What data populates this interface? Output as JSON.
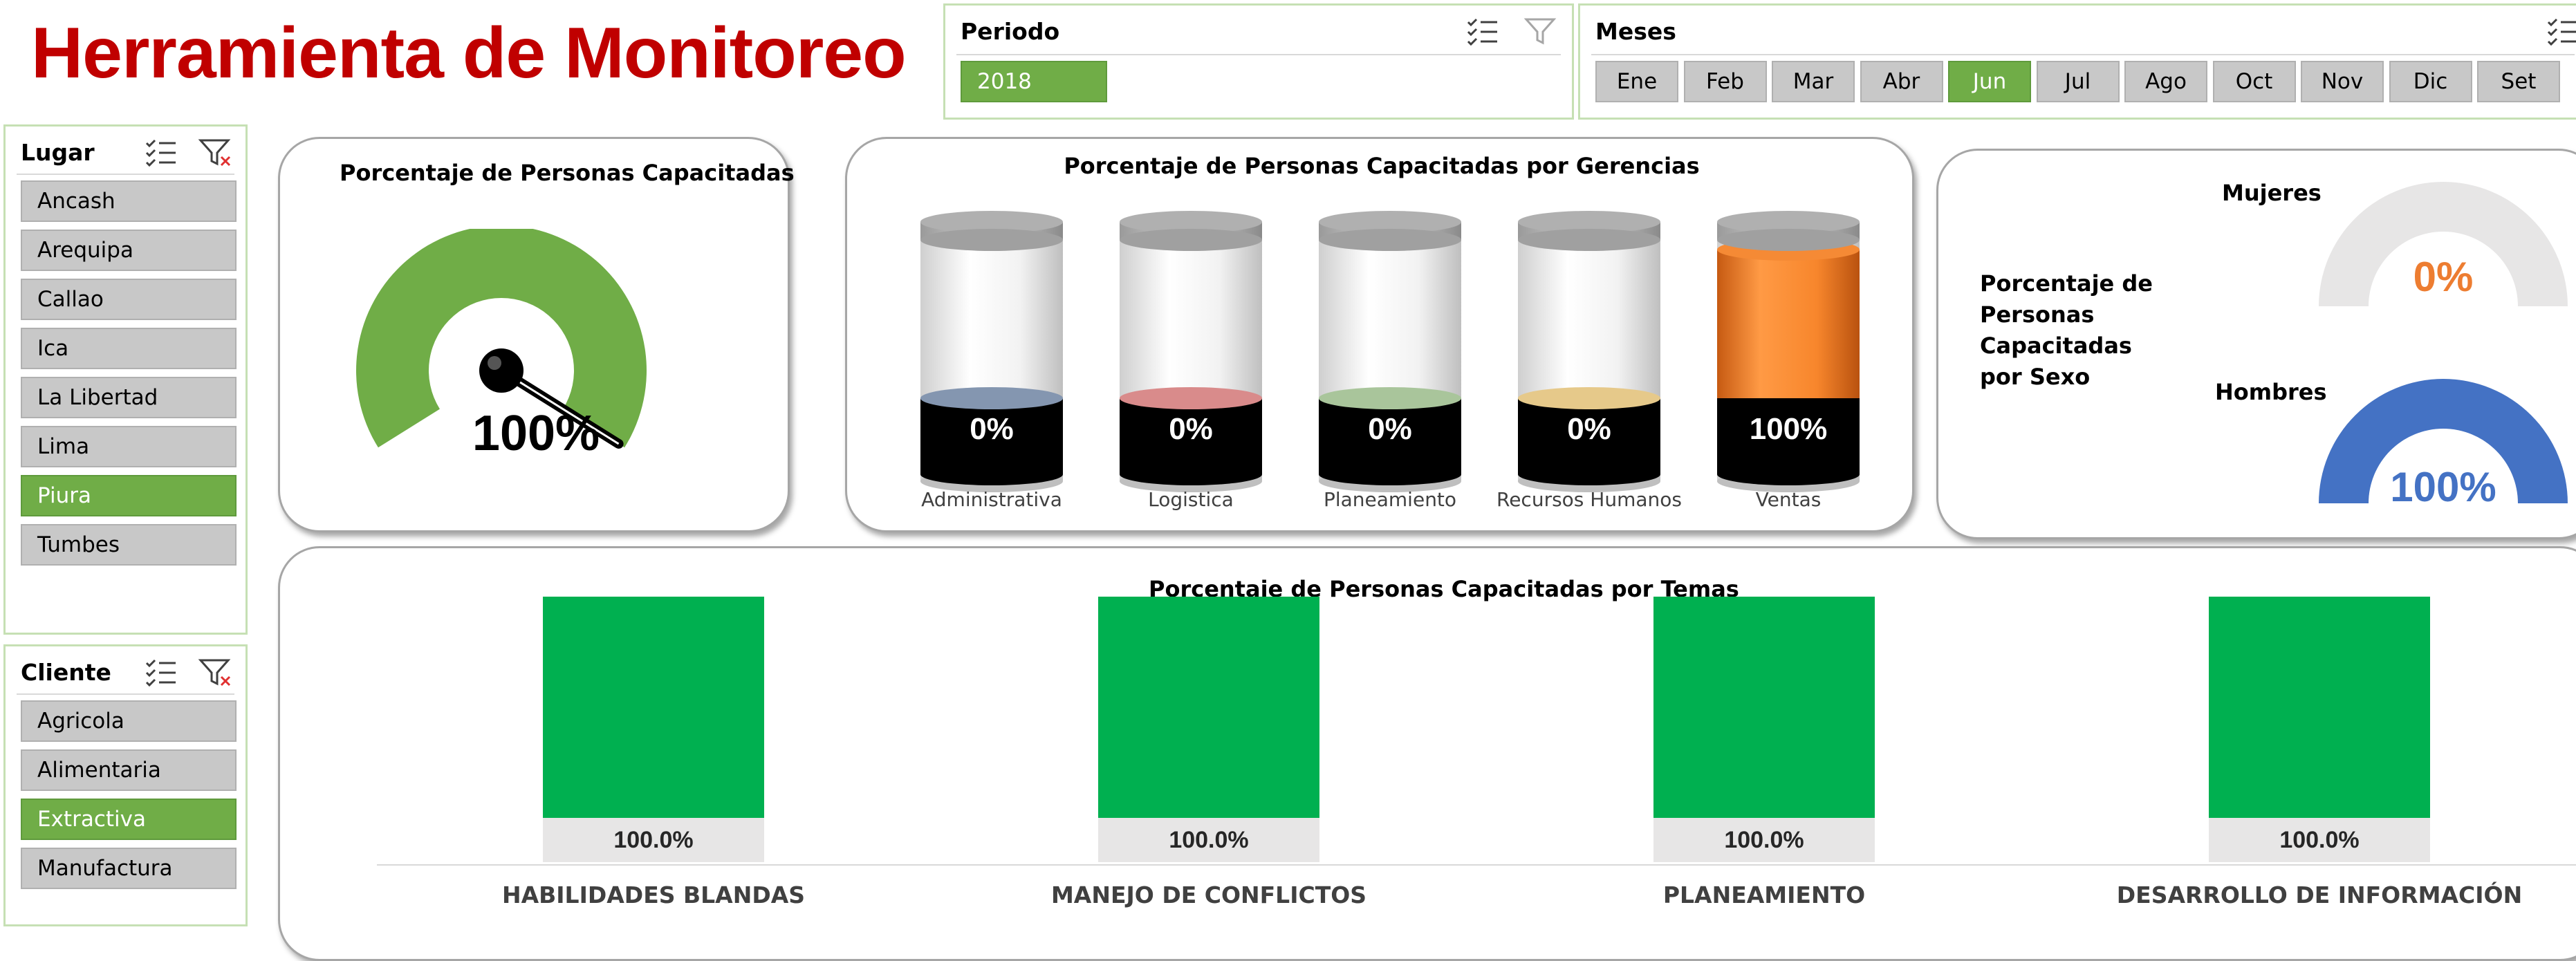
{
  "title": "Herramienta de Monitoreo",
  "periodo": {
    "header": "Periodo",
    "items": [
      {
        "label": "2018",
        "selected": true
      }
    ]
  },
  "meses": {
    "header": "Meses",
    "items": [
      {
        "label": "Ene",
        "selected": false
      },
      {
        "label": "Feb",
        "selected": false
      },
      {
        "label": "Mar",
        "selected": false
      },
      {
        "label": "Abr",
        "selected": false
      },
      {
        "label": "Jun",
        "selected": true
      },
      {
        "label": "Jul",
        "selected": false
      },
      {
        "label": "Ago",
        "selected": false
      },
      {
        "label": "Oct",
        "selected": false
      },
      {
        "label": "Nov",
        "selected": false
      },
      {
        "label": "Dic",
        "selected": false
      },
      {
        "label": "Set",
        "selected": false
      }
    ]
  },
  "lugar": {
    "header": "Lugar",
    "items": [
      {
        "label": "Ancash",
        "selected": false
      },
      {
        "label": "Arequipa",
        "selected": false
      },
      {
        "label": "Callao",
        "selected": false
      },
      {
        "label": "Ica",
        "selected": false
      },
      {
        "label": "La Libertad",
        "selected": false
      },
      {
        "label": "Lima",
        "selected": false
      },
      {
        "label": "Piura",
        "selected": true
      },
      {
        "label": "Tumbes",
        "selected": false
      }
    ]
  },
  "cliente": {
    "header": "Cliente",
    "items": [
      {
        "label": "Agricola",
        "selected": false
      },
      {
        "label": "Alimentaria",
        "selected": false
      },
      {
        "label": "Extractiva",
        "selected": true
      },
      {
        "label": "Manufactura",
        "selected": false
      }
    ]
  },
  "gauge": {
    "title": "Porcentaje de Personas Capacitadas",
    "value_label": "100%",
    "value": 100,
    "color": "#70ad47"
  },
  "gerencias": {
    "title": "Porcentaje de Personas Capacitadas por Gerencias",
    "items": [
      {
        "label": "Administrativa",
        "value_label": "0%",
        "value": 0,
        "color": "#8496b0"
      },
      {
        "label": "Logistica",
        "value_label": "0%",
        "value": 0,
        "color": "#d98b8b"
      },
      {
        "label": "Planeamiento",
        "value_label": "0%",
        "value": 0,
        "color": "#a9c59b"
      },
      {
        "label": "Recursos Humanos",
        "value_label": "0%",
        "value": 0,
        "color": "#e6c98a"
      },
      {
        "label": "Ventas",
        "value_label": "100%",
        "value": 100,
        "color": "#f58a35"
      }
    ]
  },
  "sexo": {
    "title_lines": [
      "Porcentaje de",
      "Personas",
      "Capacitadas",
      "por Sexo"
    ],
    "mujeres": {
      "label": "Mujeres",
      "value_label": "0%",
      "value": 0,
      "color": "#ed7d31"
    },
    "hombres": {
      "label": "Hombres",
      "value_label": "100%",
      "value": 100,
      "color": "#4472c4"
    }
  },
  "temas": {
    "title": "Porcentaje de Personas Capacitadas por Temas",
    "color": "#00b050",
    "items": [
      {
        "label": "HABILIDADES BLANDAS",
        "value_label": "100.0%",
        "value": 100
      },
      {
        "label": "MANEJO DE CONFLICTOS",
        "value_label": "100.0%",
        "value": 100
      },
      {
        "label": "PLANEAMIENTO",
        "value_label": "100.0%",
        "value": 100
      },
      {
        "label": "DESARROLLO DE INFORMACIÓN",
        "value_label": "100.0%",
        "value": 100
      }
    ]
  },
  "chart_data": [
    {
      "type": "bar",
      "title": "Porcentaje de Personas Capacitadas por Gerencias",
      "categories": [
        "Administrativa",
        "Logistica",
        "Planeamiento",
        "Recursos Humanos",
        "Ventas"
      ],
      "values": [
        0,
        0,
        0,
        0,
        100
      ],
      "ylim": [
        0,
        100
      ]
    },
    {
      "type": "bar",
      "title": "Porcentaje de Personas Capacitadas por Temas",
      "categories": [
        "HABILIDADES BLANDAS",
        "MANEJO DE CONFLICTOS",
        "PLANEAMIENTO",
        "DESARROLLO DE INFORMACIÓN"
      ],
      "values": [
        100.0,
        100.0,
        100.0,
        100.0
      ],
      "ylim": [
        0,
        100
      ]
    }
  ]
}
